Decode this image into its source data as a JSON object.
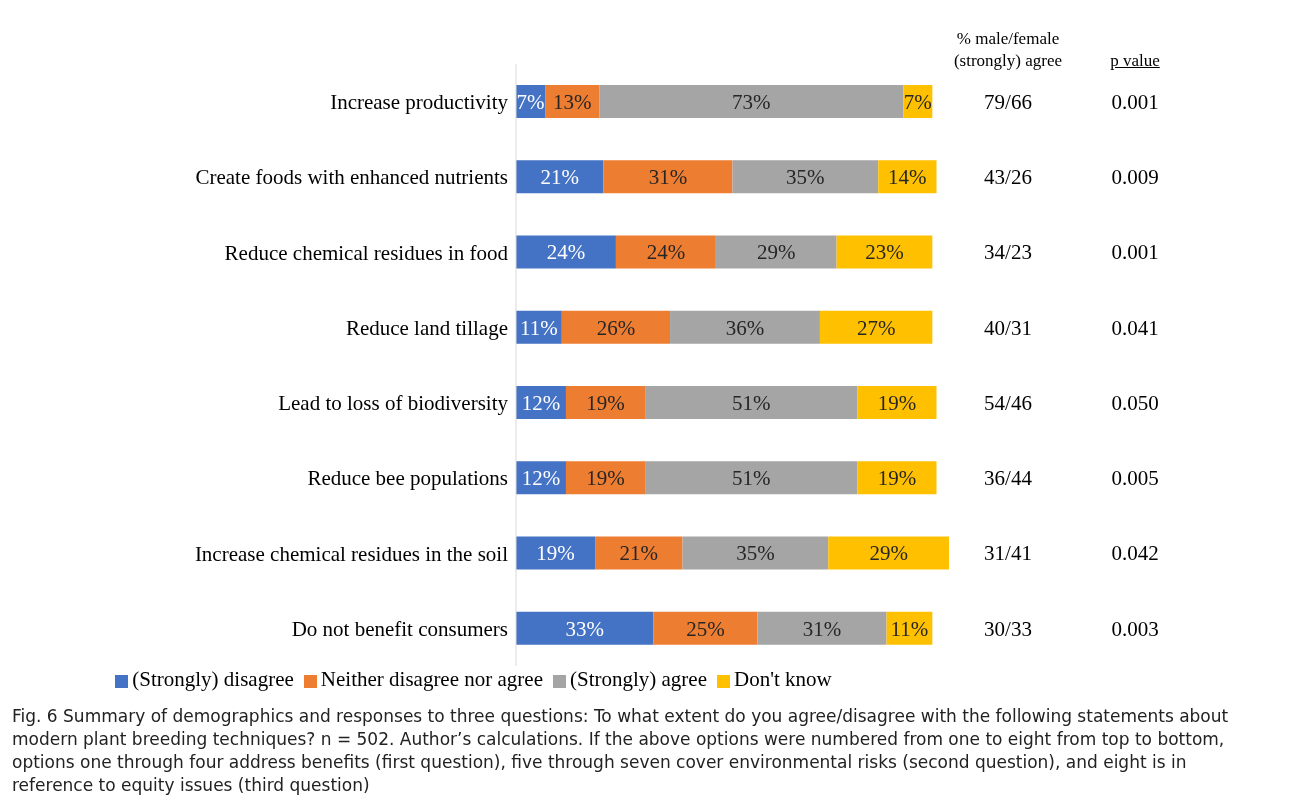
{
  "chart_data": {
    "type": "bar",
    "orientation": "horizontal",
    "stacked": true,
    "legend": "bottom",
    "grid": false,
    "categories": [
      "Increase productivity",
      "Create foods with enhanced nutrients",
      "Reduce chemical residues in food",
      "Reduce land tillage",
      "Lead to loss of biodiversity",
      "Reduce bee populations",
      "Increase chemical residues in the soil",
      "Do not benefit consumers"
    ],
    "series": [
      {
        "name": "(Strongly) disagree",
        "color": "#4472c4",
        "values": [
          7,
          21,
          24,
          11,
          12,
          12,
          19,
          33
        ],
        "value_labels": [
          "7%",
          "21%",
          "24%",
          "11%",
          "12%",
          "12%",
          "19%",
          "33%"
        ]
      },
      {
        "name": "Neither disagree nor agree",
        "color": "#ed7d31",
        "values": [
          13,
          31,
          24,
          26,
          19,
          19,
          21,
          25
        ],
        "value_labels": [
          "13%",
          "31%",
          "24%",
          "26%",
          "19%",
          "19%",
          "21%",
          "25%"
        ]
      },
      {
        "name": "(Strongly) agree",
        "color": "#a5a5a5",
        "values": [
          73,
          35,
          29,
          36,
          51,
          51,
          35,
          31
        ],
        "value_labels": [
          "73%",
          "35%",
          "29%",
          "36%",
          "51%",
          "51%",
          "35%",
          "31%"
        ]
      },
      {
        "name": "Don't know",
        "color": "#ffc000",
        "values": [
          7,
          14,
          23,
          27,
          19,
          19,
          29,
          11
        ],
        "value_labels": [
          "7%",
          "14%",
          "23%",
          "27%",
          "19%",
          "19%",
          "29%",
          "11%"
        ]
      }
    ],
    "annotations": [
      "% male/female (strongly) agree",
      "p value",
      "79/66",
      "0.001",
      "43/26",
      "0.009",
      "34/23",
      "0.001",
      "40/31",
      "0.041",
      "54/46",
      "0.050",
      "36/44",
      "0.005",
      "31/41",
      "0.042",
      "30/33",
      "0.003",
      "Fig. 6 Summary of demographics and responses to three questions: To what extent do you agree/disagree with the following statements about modern plant breeding techniques? n = 502. Author’s calculations. If the above options were numbered from one to eight from top to bottom, options one through four address benefits (first question), five through seven cover environmental risks (second question), and eight is in reference to equity issues (third question)"
    ]
  }
}
